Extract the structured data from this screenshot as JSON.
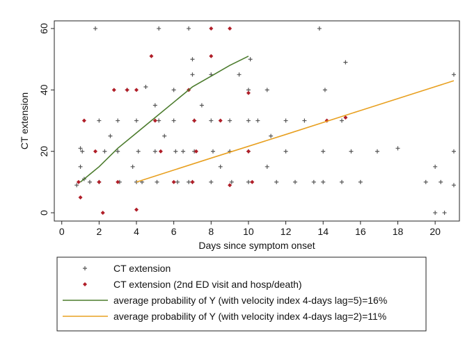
{
  "chart_data": {
    "type": "scatter",
    "xlabel": "Days since symptom onset",
    "ylabel": "CT extension",
    "xlim": [
      -0.4,
      21.3
    ],
    "ylim": [
      -2.7,
      62.5
    ],
    "xticks": [
      0,
      2,
      4,
      6,
      8,
      10,
      12,
      14,
      16,
      18,
      20
    ],
    "yticks": [
      0,
      20,
      40,
      60
    ],
    "series": [
      {
        "name": "CT extension",
        "color": "#555555",
        "style": "plus",
        "x": [
          1,
          1,
          1.2,
          1.1,
          0.8,
          1.5,
          2,
          2,
          2.3,
          2.6,
          3,
          3,
          3.1,
          3.5,
          3.8,
          4,
          4,
          4.1,
          4.3,
          4.5,
          5,
          5,
          5.1,
          5.2,
          5.5,
          6,
          6,
          6.1,
          6.2,
          6.5,
          6.8,
          7,
          7,
          7.1,
          7.1,
          7,
          7.5,
          8,
          8,
          8.1,
          8,
          8.5,
          9,
          9,
          9.1,
          9.5,
          10,
          10,
          10.1,
          10,
          10,
          10.5,
          11,
          11,
          11.2,
          11.5,
          12,
          12,
          12.5,
          13,
          13.5,
          14,
          14,
          14.1,
          15,
          15,
          15.2,
          15.5,
          16,
          16.9,
          18,
          19.5,
          20,
          20,
          20.3,
          20.5,
          21,
          21,
          21,
          1.8,
          5.2,
          6.8,
          13.8
        ],
        "values": [
          21,
          15,
          11,
          20,
          9,
          10,
          30,
          10,
          20,
          25,
          30,
          20,
          10,
          40,
          15,
          30,
          10,
          20,
          10,
          41,
          35,
          20,
          10,
          30,
          25,
          40,
          30,
          20,
          10,
          20,
          10,
          50,
          45,
          30,
          20,
          10,
          35,
          45,
          30,
          20,
          10,
          15,
          30,
          20,
          10,
          45,
          40,
          30,
          50,
          20,
          10,
          30,
          15,
          40,
          25,
          10,
          20,
          30,
          10,
          30,
          10,
          10,
          20,
          40,
          10,
          30,
          49,
          20,
          10,
          20,
          21,
          10,
          15,
          0,
          10,
          0,
          9,
          20,
          45,
          60,
          60,
          60,
          60
        ]
      },
      {
        "name": "CT extension (2nd ED visit and hosp/death)",
        "color": "#b01e28",
        "style": "diamond",
        "x": [
          0.9,
          1,
          1.2,
          1.8,
          2,
          2.2,
          2.8,
          3,
          3.5,
          4,
          4,
          4.8,
          5,
          5.3,
          6,
          6.8,
          7,
          7.2,
          8,
          8,
          8.5,
          9,
          9,
          10,
          10,
          10.2,
          14.2,
          15.2,
          7.1
        ],
        "values": [
          10,
          5,
          30,
          20,
          10,
          0,
          40,
          10,
          40,
          1,
          40,
          51,
          30,
          20,
          10,
          40,
          10,
          20,
          60,
          51,
          30,
          9,
          60,
          20,
          39,
          10,
          30,
          31,
          30
        ]
      },
      {
        "name": "average probability of Y (with velocity index 4-days lag=5)=16%",
        "color": "#4b7b2c",
        "style": "line",
        "x": [
          1,
          2,
          3,
          4,
          5,
          6,
          7,
          8,
          9,
          10
        ],
        "values": [
          10,
          15,
          21,
          26,
          31,
          36,
          41,
          44.5,
          48,
          51
        ]
      },
      {
        "name": "average probability of Y (with velocity index 4-days lag=2)=11%",
        "color": "#e8a020",
        "style": "line",
        "x": [
          4,
          8,
          12,
          16,
          21
        ],
        "values": [
          10,
          17.8,
          25.5,
          33.3,
          43
        ]
      }
    ]
  }
}
